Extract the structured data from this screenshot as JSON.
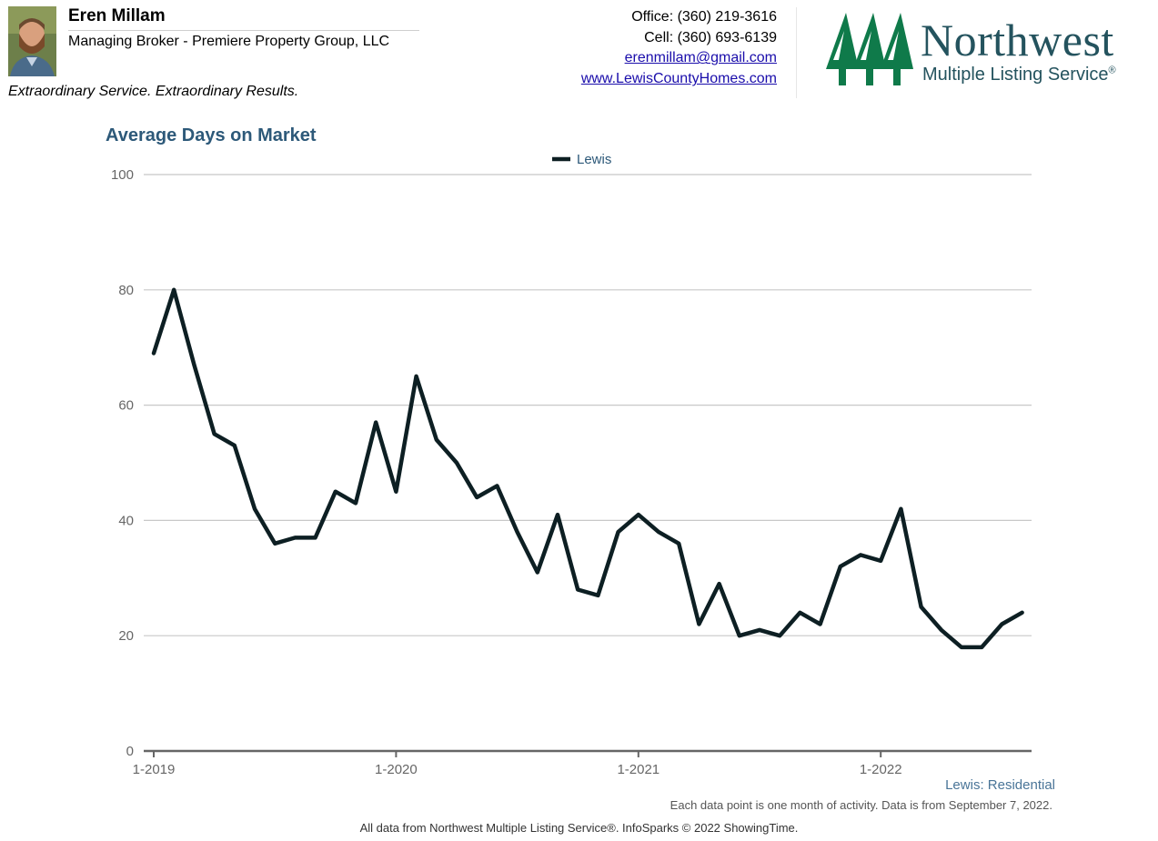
{
  "agent": {
    "name": "Eren Millam",
    "title": "Managing Broker - Premiere Property Group, LLC",
    "tagline": "Extraordinary Service. Extraordinary Results."
  },
  "contact": {
    "office": "Office: (360) 219-3616",
    "cell": "Cell: (360) 693-6139",
    "email": "erenmillam@gmail.com",
    "website": "www.LewisCountyHomes.com"
  },
  "logo": {
    "line1": "Northwest",
    "line2": "Multiple Listing Service",
    "mark": "®",
    "color": "#0f7a4a"
  },
  "chart_data": {
    "type": "line",
    "title": "Average Days on Market",
    "xlabel": "",
    "ylabel": "",
    "ylim": [
      0,
      100
    ],
    "yticks": [
      0,
      20,
      40,
      60,
      80,
      100
    ],
    "xticks": [
      "1-2019",
      "1-2020",
      "1-2021",
      "1-2022"
    ],
    "legend_position": "top-center",
    "grid": true,
    "x": [
      "1-2019",
      "2-2019",
      "3-2019",
      "4-2019",
      "5-2019",
      "6-2019",
      "7-2019",
      "8-2019",
      "9-2019",
      "10-2019",
      "11-2019",
      "12-2019",
      "1-2020",
      "2-2020",
      "3-2020",
      "4-2020",
      "5-2020",
      "6-2020",
      "7-2020",
      "8-2020",
      "9-2020",
      "10-2020",
      "11-2020",
      "12-2020",
      "1-2021",
      "2-2021",
      "3-2021",
      "4-2021",
      "5-2021",
      "6-2021",
      "7-2021",
      "8-2021",
      "9-2021",
      "10-2021",
      "11-2021",
      "12-2021",
      "1-2022",
      "2-2022",
      "3-2022",
      "4-2022",
      "5-2022",
      "6-2022",
      "7-2022",
      "8-2022"
    ],
    "series": [
      {
        "name": "Lewis",
        "color": "#0d1f23",
        "values": [
          69,
          80,
          67,
          55,
          53,
          42,
          36,
          37,
          37,
          45,
          43,
          57,
          45,
          65,
          54,
          50,
          44,
          46,
          38,
          31,
          41,
          28,
          27,
          38,
          41,
          38,
          36,
          22,
          29,
          20,
          21,
          20,
          24,
          22,
          32,
          34,
          33,
          42,
          25,
          21,
          18,
          18,
          22,
          24
        ]
      }
    ],
    "series_note": "Lewis: Residential",
    "note": "Each data point is one month of activity. Data is from September 7, 2022.",
    "source": "All data from Northwest Multiple Listing Service®. InfoSparks © 2022 ShowingTime."
  }
}
